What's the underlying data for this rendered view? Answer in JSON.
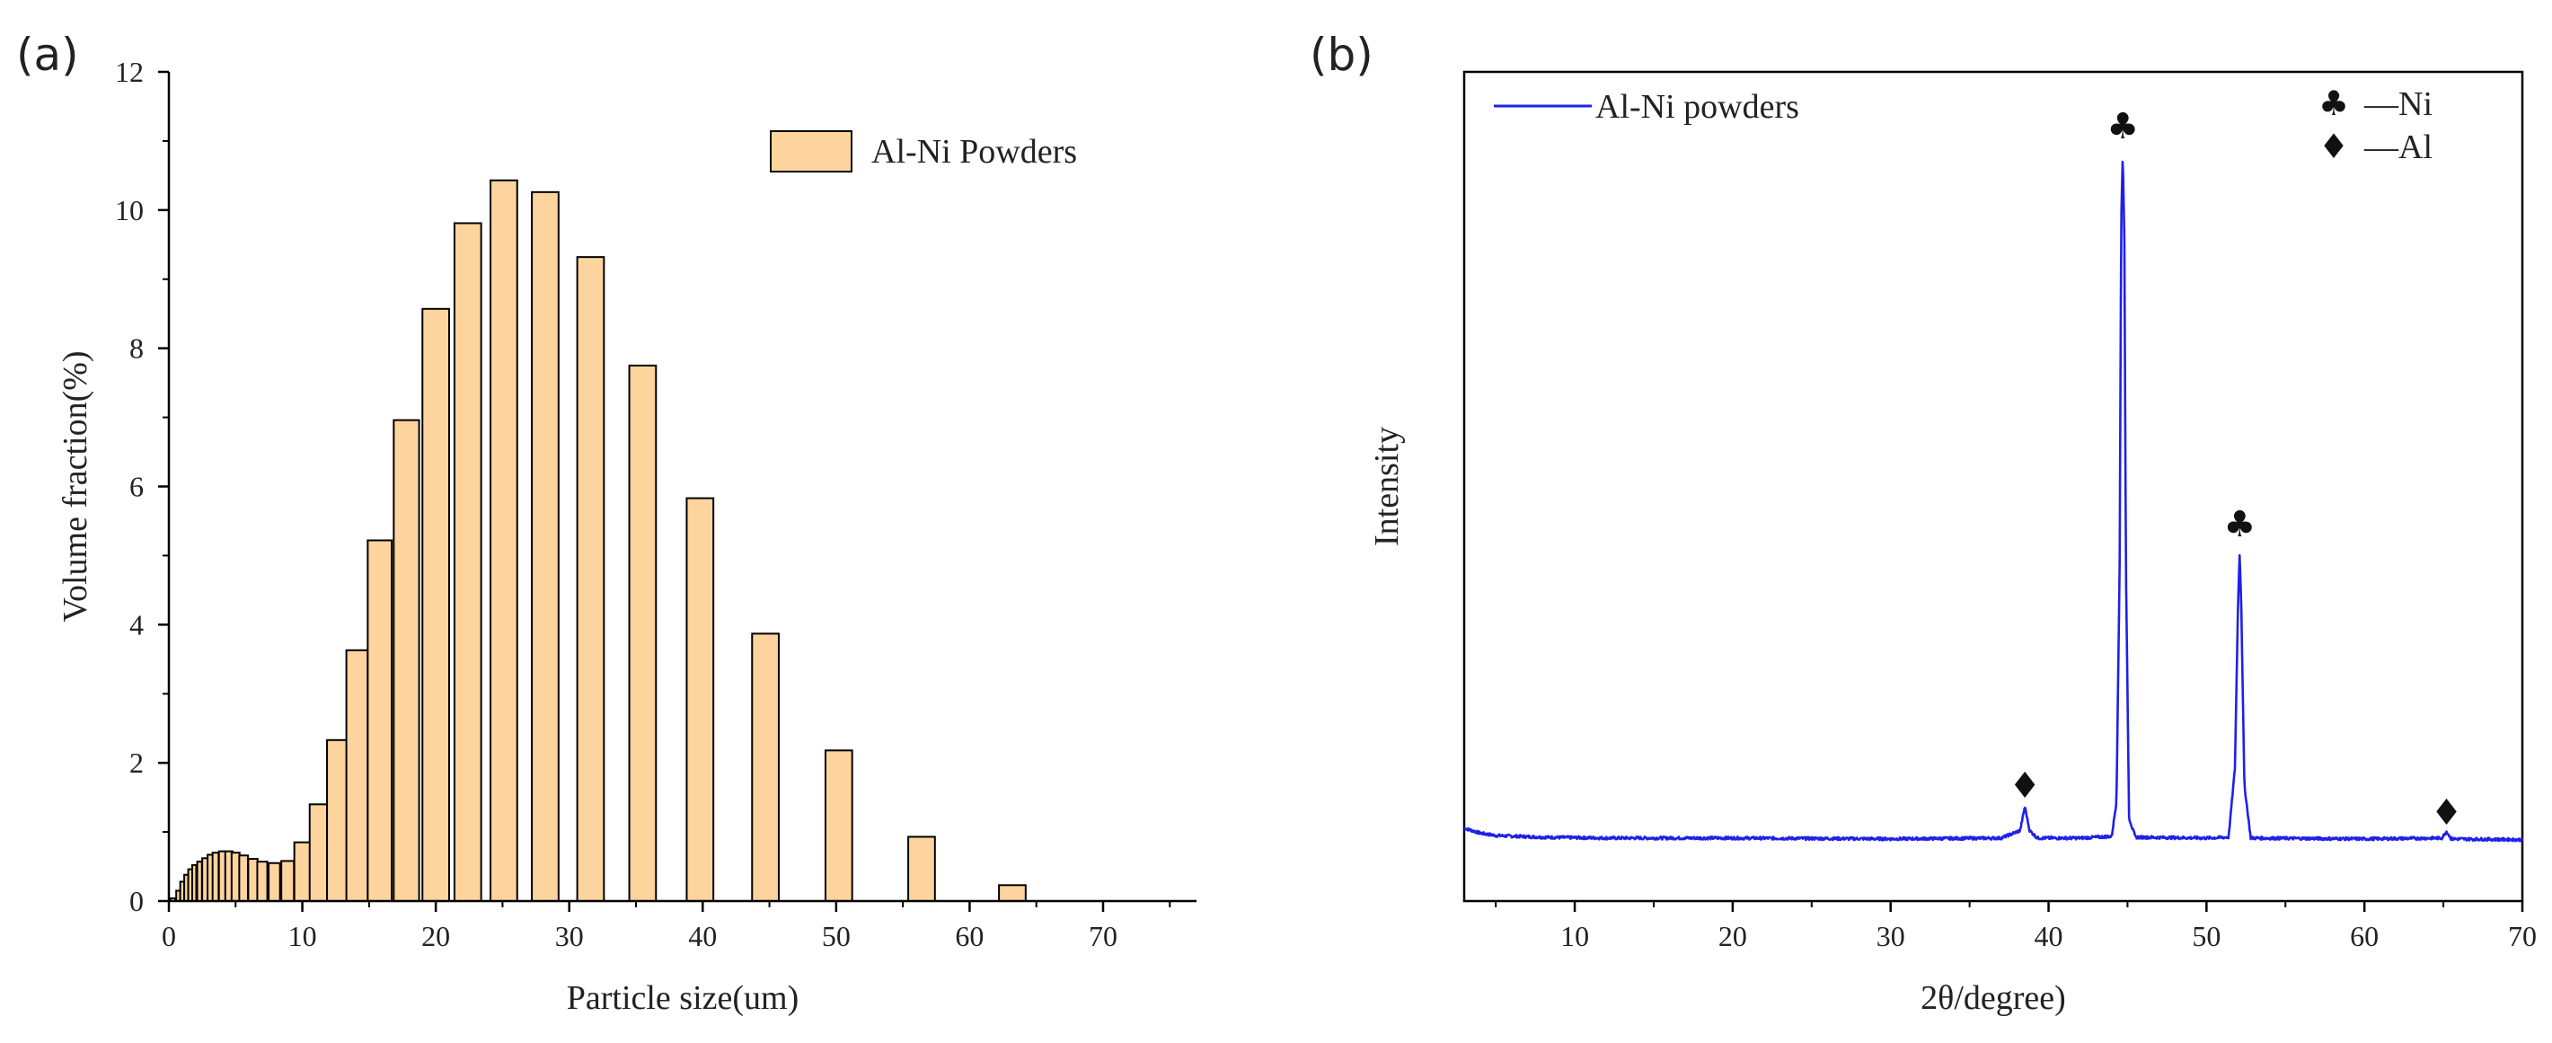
{
  "figure": {
    "panel_a_label": "(a)",
    "panel_b_label": "(b)"
  },
  "chart_data": [
    {
      "type": "bar",
      "title": "",
      "xlabel": "Particle size(um)",
      "ylabel": "Volume fraction(%)",
      "xlim": [
        0,
        77
      ],
      "ylim": [
        0,
        12
      ],
      "xticks": [
        0,
        10,
        20,
        30,
        40,
        50,
        60,
        70
      ],
      "yticks": [
        0,
        2,
        4,
        6,
        8,
        10,
        12
      ],
      "grid": false,
      "legend": {
        "position": "top-right",
        "entries": [
          "Al-Ni Powders"
        ]
      },
      "series": [
        {
          "name": "Al-Ni Powders",
          "color": "#FDD49E",
          "edge_color": "#000000",
          "x": [
            0.3,
            0.7,
            1.0,
            1.3,
            1.6,
            1.9,
            2.3,
            2.7,
            3.1,
            3.5,
            4.0,
            4.5,
            5.0,
            5.6,
            6.3,
            7.0,
            7.9,
            8.9,
            10.0,
            11.2,
            12.6,
            14.1,
            15.8,
            17.8,
            20.0,
            22.4,
            25.1,
            28.2,
            31.6,
            35.5,
            39.8,
            44.7,
            50.2,
            56.4,
            63.2,
            71.0,
            79.6
          ],
          "widths": [
            0.35,
            0.3,
            0.3,
            0.3,
            0.3,
            0.3,
            0.35,
            0.4,
            0.4,
            0.45,
            0.5,
            0.55,
            0.6,
            0.65,
            0.7,
            0.75,
            0.85,
            0.95,
            1.2,
            1.3,
            1.5,
            1.6,
            1.8,
            1.9,
            2.0,
            2.0,
            2.0,
            2.0,
            2.0,
            2.0,
            2.0,
            2.0,
            2.0,
            2.0,
            2.0,
            2.0,
            2.0
          ],
          "values": [
            0.04,
            0.15,
            0.28,
            0.38,
            0.46,
            0.52,
            0.57,
            0.62,
            0.67,
            0.7,
            0.72,
            0.72,
            0.7,
            0.66,
            0.61,
            0.57,
            0.55,
            0.58,
            0.85,
            1.4,
            2.33,
            3.63,
            5.22,
            6.96,
            8.57,
            9.81,
            10.43,
            10.26,
            9.32,
            7.75,
            5.83,
            3.87,
            2.18,
            0.93,
            0.23,
            0.0,
            0.0
          ]
        }
      ]
    },
    {
      "type": "line",
      "title": "",
      "xlabel": "2θ/degree)",
      "ylabel": "Intensity",
      "xlim": [
        3,
        70
      ],
      "ylim": [
        0,
        100
      ],
      "xticks": [
        10,
        20,
        30,
        40,
        50,
        60,
        70
      ],
      "yticks": [],
      "grid": false,
      "legend": {
        "position": "top-left",
        "entries": [
          "Al-Ni powders"
        ]
      },
      "series": [
        {
          "name": "Al-Ni powders",
          "color": "#2020E8",
          "baseline": 7.6,
          "x": [
            3,
            4,
            5,
            8,
            12,
            20,
            30,
            37,
            38.2,
            38.5,
            38.8,
            39.3,
            42,
            44.0,
            44.3,
            44.5,
            44.6,
            44.7,
            44.8,
            44.9,
            45.1,
            45.5,
            50,
            51.4,
            51.8,
            52.0,
            52.1,
            52.2,
            52.4,
            52.8,
            60,
            64.9,
            65.2,
            65.5,
            70
          ],
          "y": [
            8.8,
            8.2,
            7.9,
            7.7,
            7.6,
            7.6,
            7.5,
            7.6,
            8.5,
            11.4,
            8.5,
            7.6,
            7.6,
            7.8,
            12.0,
            40.0,
            82.0,
            90.0,
            80.0,
            40.0,
            10.0,
            7.7,
            7.6,
            7.7,
            16.0,
            36.0,
            42.0,
            36.0,
            14.0,
            7.6,
            7.5,
            7.6,
            8.4,
            7.5,
            7.4
          ]
        }
      ],
      "annotations": [
        {
          "symbol": "♣",
          "label": "Ni",
          "x": 44.7,
          "y": 93.5
        },
        {
          "symbol": "♣",
          "label": "Ni",
          "x": 52.1,
          "y": 45.5
        },
        {
          "symbol": "♦",
          "label": "Al",
          "x": 38.5,
          "y": 14.0
        },
        {
          "symbol": "♦",
          "label": "Al",
          "x": 65.2,
          "y": 10.7
        }
      ],
      "symbol_legend": [
        {
          "symbol": "♣",
          "text": "—Ni"
        },
        {
          "symbol": "♦",
          "text": "—Al"
        }
      ]
    }
  ]
}
